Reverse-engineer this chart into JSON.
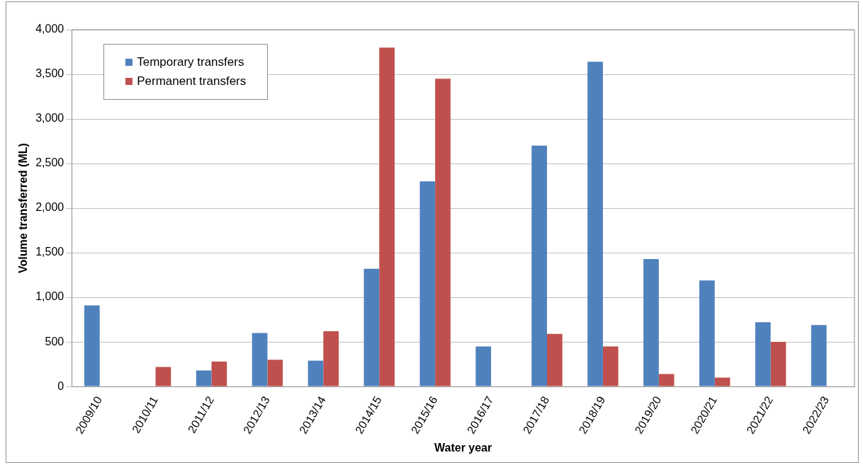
{
  "chart_data": {
    "type": "bar",
    "xlabel": "Water year",
    "ylabel": "Volume transferred (ML)",
    "categories": [
      "2009/10",
      "2010/11",
      "2011/12",
      "2012/13",
      "2013/14",
      "2014/15",
      "2015/16",
      "2016/17",
      "2017/18",
      "2018/19",
      "2019/20",
      "2020/21",
      "2021/22",
      "2022/23"
    ],
    "series": [
      {
        "name": "Temporary transfers",
        "color": "#4f81bd",
        "values": [
          910,
          0,
          180,
          600,
          290,
          1320,
          2300,
          450,
          2700,
          3640,
          1430,
          1190,
          720,
          690
        ]
      },
      {
        "name": "Permanent transfers",
        "color": "#c0504d",
        "values": [
          0,
          220,
          280,
          300,
          620,
          3800,
          3450,
          0,
          590,
          450,
          140,
          100,
          500,
          0
        ]
      }
    ],
    "ylim": [
      0,
      4000
    ],
    "yticks": [
      0,
      500,
      {
        "value": 1000,
        "label": "1,000"
      },
      {
        "value": 1500,
        "label": "1,500"
      },
      {
        "value": 2000,
        "label": "2,000"
      },
      {
        "value": 2500,
        "label": "2,500"
      },
      {
        "value": 3000,
        "label": "3,000"
      },
      {
        "value": 3500,
        "label": "3,500"
      },
      {
        "value": 4000,
        "label": "4,000"
      }
    ],
    "grid": "y",
    "legend": "top left"
  }
}
